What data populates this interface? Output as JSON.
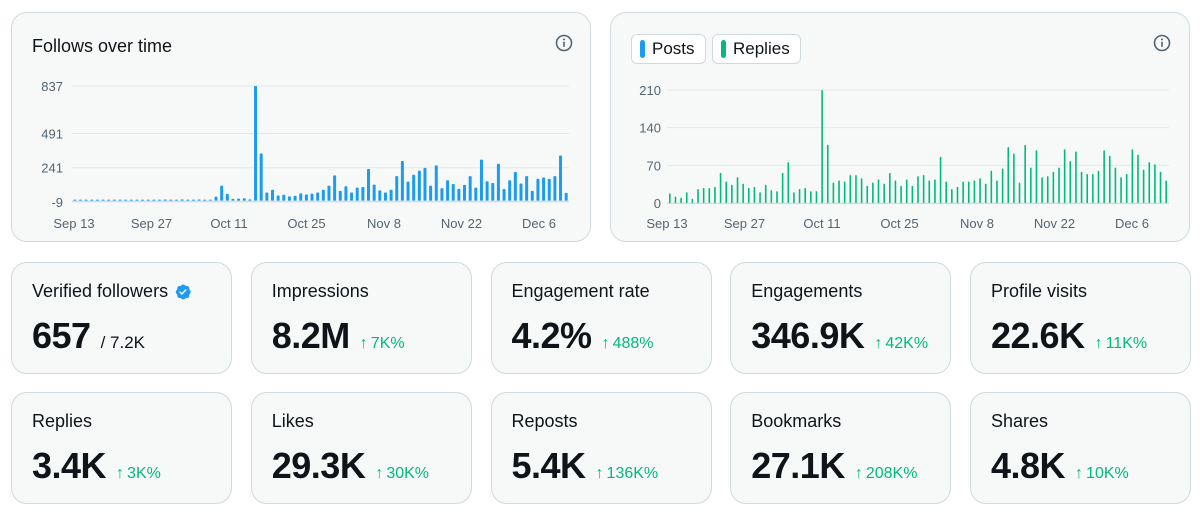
{
  "follows_chart": {
    "title": "Follows over time",
    "info_icon": "info-icon",
    "color": "#1d9bf0",
    "chart_data": {
      "type": "bar",
      "title": "Follows over time",
      "xlabel": "",
      "ylabel": "",
      "y_ticks": [
        "837",
        "491",
        "241",
        "-9"
      ],
      "ylim": [
        -9,
        837
      ],
      "x_tick_labels": [
        "Sep 13",
        "Sep 27",
        "Oct 11",
        "Oct 25",
        "Nov 8",
        "Nov 22",
        "Dec 6"
      ],
      "grid": true,
      "values": [
        2,
        3,
        2,
        4,
        3,
        5,
        2,
        6,
        4,
        8,
        3,
        5,
        7,
        4,
        6,
        5,
        9,
        6,
        8,
        10,
        7,
        5,
        9,
        6,
        8,
        30,
        110,
        50,
        14,
        16,
        18,
        10,
        837,
        345,
        60,
        80,
        38,
        44,
        32,
        36,
        54,
        46,
        52,
        60,
        80,
        110,
        185,
        72,
        106,
        60,
        96,
        100,
        232,
        118,
        76,
        60,
        80,
        180,
        290,
        140,
        190,
        220,
        240,
        110,
        258,
        92,
        150,
        122,
        88,
        116,
        180,
        96,
        300,
        142,
        130,
        270,
        86,
        150,
        210,
        126,
        180,
        72,
        160,
        170,
        160,
        180,
        330,
        58
      ]
    }
  },
  "activity_chart": {
    "legend": [
      {
        "label": "Posts",
        "color": "#1d9bf0"
      },
      {
        "label": "Replies",
        "color": "#00ba7c"
      }
    ],
    "info_icon": "info-icon",
    "chart_data": {
      "type": "bar",
      "title": "",
      "xlabel": "",
      "ylabel": "",
      "y_ticks": [
        "210",
        "140",
        "70",
        "0"
      ],
      "ylim": [
        0,
        210
      ],
      "x_tick_labels": [
        "Sep 13",
        "Sep 27",
        "Oct 11",
        "Oct 25",
        "Nov 8",
        "Nov 22",
        "Dec 6"
      ],
      "grid": true,
      "series": [
        {
          "name": "Replies",
          "values": [
            18,
            12,
            10,
            20,
            8,
            26,
            28,
            28,
            30,
            56,
            40,
            34,
            48,
            36,
            28,
            30,
            20,
            34,
            24,
            22,
            56,
            76,
            20,
            26,
            28,
            22,
            22,
            210,
            108,
            38,
            42,
            40,
            52,
            52,
            46,
            32,
            38,
            44,
            36,
            56,
            42,
            32,
            44,
            32,
            50,
            52,
            42,
            44,
            86,
            40,
            26,
            30,
            40,
            40,
            42,
            46,
            36,
            60,
            42,
            64,
            104,
            92,
            38,
            108,
            66,
            98,
            48,
            50,
            58,
            66,
            100,
            78,
            96,
            58,
            54,
            54,
            60,
            98,
            88,
            66,
            48,
            54,
            100,
            90,
            62,
            76,
            72,
            58,
            42
          ]
        }
      ]
    }
  },
  "metrics": [
    {
      "title": "Verified followers",
      "value": "657",
      "total": "/ 7.2K",
      "verified_icon": "verified-badge-icon"
    },
    {
      "title": "Impressions",
      "value": "8.2M",
      "change": "7K%"
    },
    {
      "title": "Engagement rate",
      "value": "4.2%",
      "change": "488%"
    },
    {
      "title": "Engagements",
      "value": "346.9K",
      "change": "42K%"
    },
    {
      "title": "Profile visits",
      "value": "22.6K",
      "change": "11K%"
    },
    {
      "title": "Replies",
      "value": "3.4K",
      "change": "3K%"
    },
    {
      "title": "Likes",
      "value": "29.3K",
      "change": "30K%"
    },
    {
      "title": "Reposts",
      "value": "5.4K",
      "change": "136K%"
    },
    {
      "title": "Bookmarks",
      "value": "27.1K",
      "change": "208K%"
    },
    {
      "title": "Shares",
      "value": "4.8K",
      "change": "10K%"
    }
  ],
  "change_arrow": "↑",
  "change_color": "#00ba7c"
}
